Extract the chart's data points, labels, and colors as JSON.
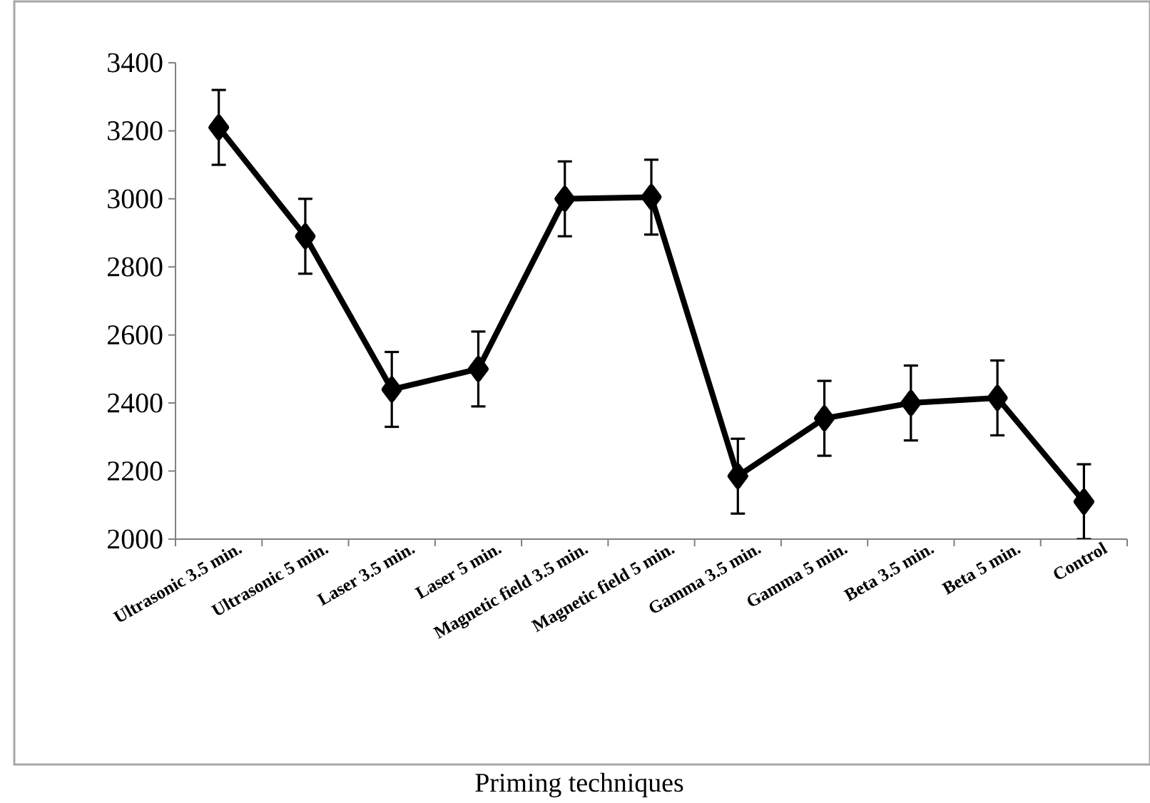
{
  "chart_data": {
    "type": "line",
    "xlabel": "Priming techniques",
    "categories": [
      "Ultrasonic 3.5 min.",
      "Ultrasonic 5 min.",
      "Laser 3.5 min.",
      "Laser 5 min.",
      "Magnetic field 3.5 min.",
      "Magnetic field 5 min.",
      "Gamma 3.5 min.",
      "Gamma 5 min.",
      "Beta 3.5 min.",
      "Beta 5 min.",
      "Control"
    ],
    "values": [
      3210,
      2890,
      2440,
      2500,
      3000,
      3005,
      2185,
      2355,
      2400,
      2415,
      2110
    ],
    "errors": [
      110,
      110,
      110,
      110,
      110,
      110,
      110,
      110,
      110,
      110,
      110
    ],
    "color": "#000000",
    "marker": "diamond",
    "line_style": "solid",
    "ylim": [
      2000,
      3400
    ],
    "yticks": [
      2000,
      2200,
      2400,
      2600,
      2800,
      3000,
      3200,
      3400
    ],
    "grid": false
  }
}
